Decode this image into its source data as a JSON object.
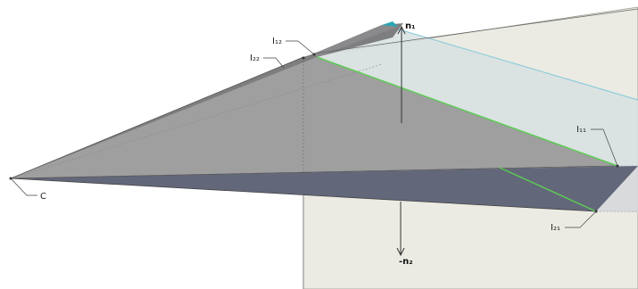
{
  "diagram": {
    "labels": {
      "n1": "n₁",
      "neg_n2": "-n₂",
      "I12": "I₁₂",
      "I22": "I₂₂",
      "I11": "I₁₁",
      "I21": "I₂₁",
      "C": "C"
    },
    "colors": {
      "background": "#ffffff",
      "plane_back": "#ebebe3",
      "plane_front": "#d6d8da",
      "plane_translucent": "#d8e0e2",
      "upper_face": "#9f9f9f",
      "lower_face": "#63677a",
      "top_face": "#7e7e80",
      "intersection_line": "#5ccc54",
      "plane_edge": "#7fc8d8",
      "axis": "#333333"
    }
  }
}
